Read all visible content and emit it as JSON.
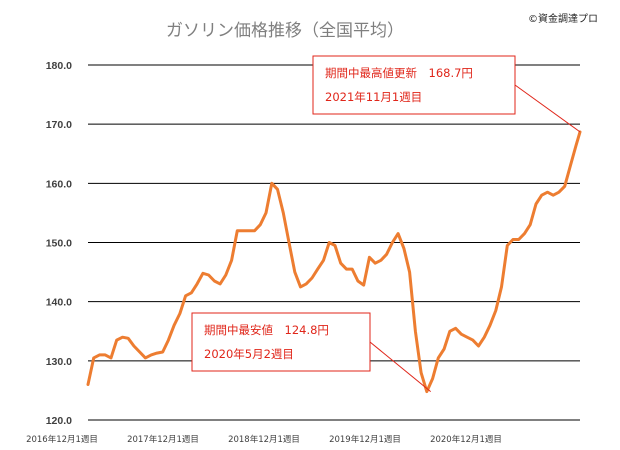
{
  "chart_data": {
    "type": "line",
    "title": "ガソリン価格推移（全国平均）",
    "credit": "©資金調達プロ",
    "xlabel": "",
    "ylabel": "",
    "ylim": [
      120,
      180
    ],
    "yticks": [
      "120.0",
      "130.0",
      "140.0",
      "150.0",
      "160.0",
      "170.0",
      "180.0"
    ],
    "xticks": [
      "2016年12月1週目",
      "2017年12月1週目",
      "2018年12月1週目",
      "2019年12月1週目",
      "2020年12月1週目"
    ],
    "grid": true,
    "series": [
      {
        "color": "#ed7d31",
        "points": [
          [
            "2016-12-05",
            126.0
          ],
          [
            "2016-12-26",
            130.5
          ],
          [
            "2017-01-16",
            131.0
          ],
          [
            "2017-02-06",
            131.0
          ],
          [
            "2017-02-27",
            130.5
          ],
          [
            "2017-03-20",
            133.5
          ],
          [
            "2017-04-10",
            134.0
          ],
          [
            "2017-05-01",
            133.8
          ],
          [
            "2017-05-22",
            132.5
          ],
          [
            "2017-06-12",
            131.5
          ],
          [
            "2017-07-03",
            130.5
          ],
          [
            "2017-07-24",
            131.0
          ],
          [
            "2017-08-14",
            131.3
          ],
          [
            "2017-09-04",
            131.5
          ],
          [
            "2017-09-25",
            133.5
          ],
          [
            "2017-10-16",
            136.0
          ],
          [
            "2017-11-06",
            138.0
          ],
          [
            "2017-11-27",
            141.0
          ],
          [
            "2017-12-18",
            141.5
          ],
          [
            "2018-01-08",
            143.0
          ],
          [
            "2018-01-29",
            144.8
          ],
          [
            "2018-02-19",
            144.5
          ],
          [
            "2018-03-12",
            143.5
          ],
          [
            "2018-04-02",
            143.0
          ],
          [
            "2018-04-23",
            144.5
          ],
          [
            "2018-05-14",
            147.0
          ],
          [
            "2018-06-04",
            152.0
          ],
          [
            "2018-06-25",
            152.0
          ],
          [
            "2018-07-16",
            152.0
          ],
          [
            "2018-08-06",
            152.0
          ],
          [
            "2018-08-27",
            153.0
          ],
          [
            "2018-09-17",
            155.0
          ],
          [
            "2018-10-08",
            160.0
          ],
          [
            "2018-10-29",
            159.0
          ],
          [
            "2018-11-19",
            155.0
          ],
          [
            "2018-12-10",
            150.0
          ],
          [
            "2018-12-31",
            145.0
          ],
          [
            "2019-01-21",
            142.5
          ],
          [
            "2019-02-11",
            143.0
          ],
          [
            "2019-03-04",
            144.0
          ],
          [
            "2019-03-25",
            145.5
          ],
          [
            "2019-04-15",
            147.0
          ],
          [
            "2019-05-06",
            150.0
          ],
          [
            "2019-05-27",
            149.5
          ],
          [
            "2019-06-17",
            146.5
          ],
          [
            "2019-07-08",
            145.5
          ],
          [
            "2019-07-29",
            145.5
          ],
          [
            "2019-08-19",
            143.5
          ],
          [
            "2019-09-09",
            142.8
          ],
          [
            "2019-09-30",
            147.5
          ],
          [
            "2019-10-21",
            146.5
          ],
          [
            "2019-11-11",
            147.0
          ],
          [
            "2019-12-02",
            148.0
          ],
          [
            "2019-12-23",
            150.0
          ],
          [
            "2020-01-13",
            151.5
          ],
          [
            "2020-02-03",
            149.0
          ],
          [
            "2020-02-24",
            145.0
          ],
          [
            "2020-03-16",
            135.0
          ],
          [
            "2020-04-06",
            128.0
          ],
          [
            "2020-04-27",
            124.8
          ],
          [
            "2020-05-18",
            127.0
          ],
          [
            "2020-06-08",
            130.5
          ],
          [
            "2020-06-29",
            132.0
          ],
          [
            "2020-07-20",
            135.0
          ],
          [
            "2020-08-10",
            135.5
          ],
          [
            "2020-08-31",
            134.5
          ],
          [
            "2020-09-21",
            134.0
          ],
          [
            "2020-10-12",
            133.5
          ],
          [
            "2020-11-02",
            132.5
          ],
          [
            "2020-11-23",
            134.0
          ],
          [
            "2020-12-14",
            136.0
          ],
          [
            "2021-01-04",
            138.5
          ],
          [
            "2021-01-25",
            142.5
          ],
          [
            "2021-02-15",
            149.5
          ],
          [
            "2021-03-08",
            150.5
          ],
          [
            "2021-03-29",
            150.5
          ],
          [
            "2021-04-19",
            151.5
          ],
          [
            "2021-05-10",
            153.0
          ],
          [
            "2021-05-31",
            156.5
          ],
          [
            "2021-06-21",
            158.0
          ],
          [
            "2021-07-12",
            158.5
          ],
          [
            "2021-08-02",
            158.0
          ],
          [
            "2021-08-23",
            158.5
          ],
          [
            "2021-09-13",
            159.5
          ],
          [
            "2021-10-04",
            163.0
          ],
          [
            "2021-10-25",
            166.5
          ],
          [
            "2021-11-08",
            168.7
          ]
        ]
      }
    ],
    "annotations": [
      {
        "lines": [
          "期間中最高値更新　168.7円",
          "2021年11月1週目"
        ],
        "date": "2021-11-08",
        "value": 168.7
      },
      {
        "lines": [
          "期間中最安値　124.8円",
          "2020年5月2週目"
        ],
        "date": "2020-05-11",
        "value": 124.8
      }
    ]
  }
}
